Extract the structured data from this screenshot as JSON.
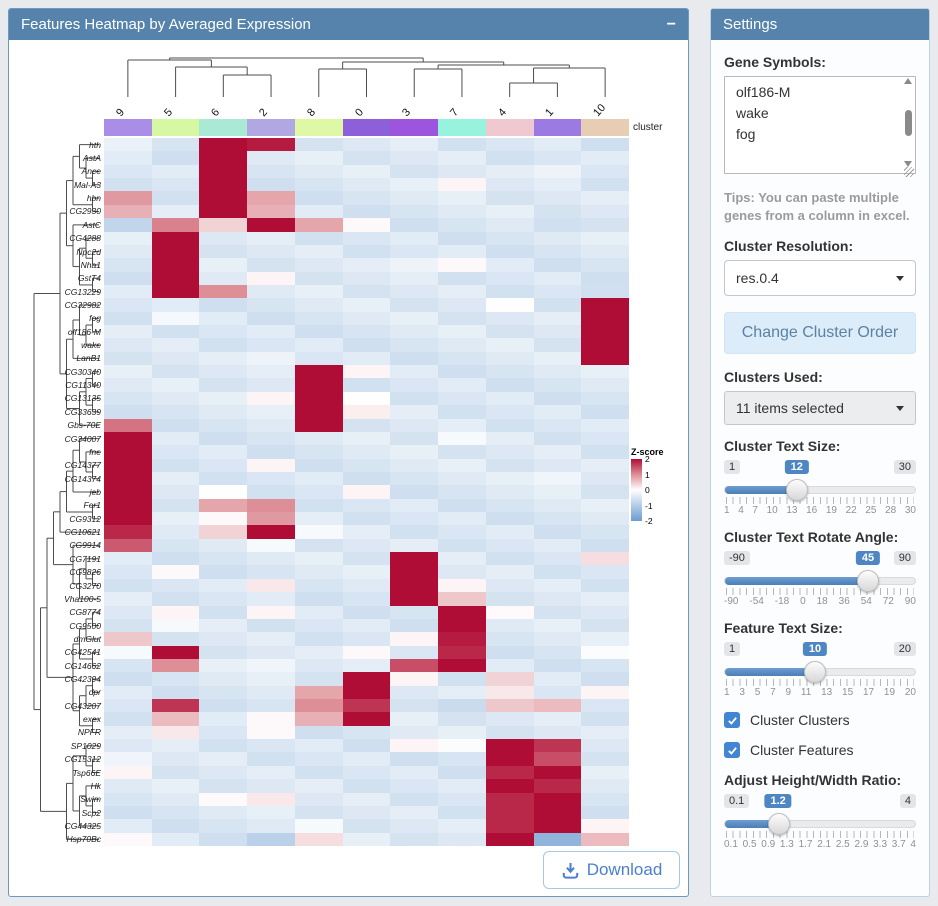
{
  "main_panel": {
    "title": "Features Heatmap by Averaged Expression",
    "collapse_label": "−",
    "download_label": "Download",
    "cluster_bar_label": "cluster",
    "legend_title": "Z-score",
    "legend_ticks": [
      "2",
      "1",
      "0",
      "-1",
      "-2"
    ]
  },
  "chart_data": {
    "type": "heatmap",
    "title": "Features Heatmap by Averaged Expression",
    "background_z": -0.45,
    "z_stops": [
      [
        -2,
        "#6d9bd2"
      ],
      [
        -1,
        "#b3cce6"
      ],
      [
        0,
        "#ffffff"
      ],
      [
        1,
        "#dd8e96"
      ],
      [
        2,
        "#b00d36"
      ]
    ],
    "columns": [
      {
        "name": "9",
        "color": "#a98de7",
        "dotted": false
      },
      {
        "name": "5",
        "color": "#d6f8a2",
        "dotted": false
      },
      {
        "name": "6",
        "color": "#a9e9d6",
        "dotted": true
      },
      {
        "name": "2",
        "color": "#b1a8e3",
        "dotted": true
      },
      {
        "name": "8",
        "color": "#def8a6",
        "dotted": true
      },
      {
        "name": "0",
        "color": "#8d5fd8",
        "dotted": true
      },
      {
        "name": "3",
        "color": "#9d55dd",
        "dotted": true
      },
      {
        "name": "7",
        "color": "#97f3de",
        "dotted": false
      },
      {
        "name": "4",
        "color": "#efc9cf",
        "dotted": false
      },
      {
        "name": "1",
        "color": "#9b7ae1",
        "dotted": true
      },
      {
        "name": "10",
        "color": "#e8cdb5",
        "dotted": true
      }
    ],
    "rows": [
      {
        "gene": "hth",
        "hot": {
          "6": 2,
          "2": 1.9
        }
      },
      {
        "gene": "AstA",
        "hot": {
          "6": 2
        }
      },
      {
        "gene": "Ance",
        "hot": {
          "6": 2
        }
      },
      {
        "gene": "Mal-A3",
        "hot": {
          "6": 2,
          "7": 0.1
        }
      },
      {
        "gene": "hbn",
        "hot": {
          "9": 0.9,
          "6": 2,
          "2": 0.8
        }
      },
      {
        "gene": "CG2930",
        "hot": {
          "9": 0.7,
          "6": 2,
          "2": 0.7
        }
      },
      {
        "gene": "AstC",
        "hot": {
          "9": -0.8,
          "5": 1.1,
          "6": 0.4,
          "2": 2,
          "8": 0.8,
          "0": 0.05,
          "1": -0.6
        }
      },
      {
        "gene": "CG4288",
        "hot": {
          "5": 2
        }
      },
      {
        "gene": "Npc2d",
        "hot": {
          "5": 2
        }
      },
      {
        "gene": "Nha1",
        "hot": {
          "5": 2,
          "7": 0.05
        }
      },
      {
        "gene": "GstT4",
        "hot": {
          "5": 2,
          "2": 0.1
        }
      },
      {
        "gene": "CG13229",
        "hot": {
          "5": 2,
          "6": 1.0,
          "10": -0.6
        }
      },
      {
        "gene": "CG32982",
        "hot": {
          "10": 2
        }
      },
      {
        "gene": "fog",
        "hot": {
          "10": 2
        }
      },
      {
        "gene": "olf186-M",
        "hot": {
          "10": 2
        }
      },
      {
        "gene": "wake",
        "hot": {
          "10": 2
        }
      },
      {
        "gene": "LanB1",
        "hot": {
          "10": 2
        }
      },
      {
        "gene": "CG30340",
        "hot": {
          "8": 2,
          "0": 0.1
        }
      },
      {
        "gene": "CG11340",
        "hot": {
          "8": 2
        }
      },
      {
        "gene": "CG13135",
        "hot": {
          "8": 2,
          "2": 0.1
        }
      },
      {
        "gene": "CG33639",
        "hot": {
          "8": 2,
          "0": 0.15
        }
      },
      {
        "gene": "Gbs-70E",
        "hot": {
          "9": 1.2,
          "8": 2
        }
      },
      {
        "gene": "CG34007",
        "hot": {
          "9": 2
        }
      },
      {
        "gene": "fne",
        "hot": {
          "9": 2
        }
      },
      {
        "gene": "CG14377",
        "hot": {
          "9": 2,
          "2": 0.1
        }
      },
      {
        "gene": "CG14374",
        "hot": {
          "9": 2
        }
      },
      {
        "gene": "jeb",
        "hot": {
          "9": 2,
          "0": 0.1
        }
      },
      {
        "gene": "Fer1",
        "hot": {
          "9": 2,
          "6": 0.8,
          "2": 1.0
        }
      },
      {
        "gene": "CG9312",
        "hot": {
          "9": 2,
          "6": 0.05,
          "2": 0.9
        }
      },
      {
        "gene": "CG10621",
        "hot": {
          "9": 1.8,
          "6": 0.4,
          "2": 2
        }
      },
      {
        "gene": "CG9914",
        "hot": {
          "9": 1.4,
          "2": -0.1
        }
      },
      {
        "gene": "CG7191",
        "hot": {
          "3": 2,
          "10": 0.3
        }
      },
      {
        "gene": "CG9826",
        "hot": {
          "3": 2,
          "5": 0.05
        }
      },
      {
        "gene": "CG3270",
        "hot": {
          "3": 2,
          "2": 0.2,
          "7": 0.1
        }
      },
      {
        "gene": "Vha100-5",
        "hot": {
          "3": 2,
          "7": 0.5
        }
      },
      {
        "gene": "CG8774",
        "hot": {
          "7": 2,
          "5": 0.1,
          "2": 0.1
        }
      },
      {
        "gene": "CG9500",
        "hot": {
          "7": 2
        }
      },
      {
        "gene": "dmGlut",
        "hot": {
          "9": 0.5,
          "7": 1.9,
          "3": 0.1
        }
      },
      {
        "gene": "CG42541",
        "hot": {
          "5": 2,
          "7": 1.8,
          "9": -0.1,
          "0": 0.05
        }
      },
      {
        "gene": "CG14662",
        "hot": {
          "5": 1.0,
          "3": 1.5,
          "7": 2
        }
      },
      {
        "gene": "CG42394",
        "hot": {
          "0": 2,
          "3": 0.1,
          "4": 0.4
        }
      },
      {
        "gene": "dpr",
        "hot": {
          "0": 2,
          "8": 0.8,
          "4": 0.2,
          "10": 0.1
        }
      },
      {
        "gene": "CG43207",
        "hot": {
          "5": 1.7,
          "8": 1.0,
          "0": 1.7,
          "7": -0.7,
          "4": 0.5,
          "1": 0.6
        }
      },
      {
        "gene": "exex",
        "hot": {
          "5": 0.6,
          "2": 0.05,
          "8": 0.7,
          "0": 2
        }
      },
      {
        "gene": "NPFR",
        "hot": {
          "2": 0.05,
          "5": 0.2
        }
      },
      {
        "gene": "SP1029",
        "hot": {
          "4": 2,
          "1": 1.7,
          "3": 0.1
        }
      },
      {
        "gene": "CG15312",
        "hot": {
          "4": 2,
          "1": 1.5
        }
      },
      {
        "gene": "Tsp66E",
        "hot": {
          "4": 1.8,
          "1": 2,
          "9": 0.1
        }
      },
      {
        "gene": "Hk",
        "hot": {
          "4": 2,
          "1": 1.8
        }
      },
      {
        "gene": "Swim",
        "hot": {
          "4": 1.8,
          "1": 2,
          "2": 0.2
        }
      },
      {
        "gene": "Scp2",
        "hot": {
          "4": 1.8,
          "1": 2
        }
      },
      {
        "gene": "CG44325",
        "hot": {
          "4": 1.8,
          "1": 2,
          "8": -0.1,
          "10": 0.1
        }
      },
      {
        "gene": "Hsp70Bc",
        "hot": {
          "9": 0.05,
          "4": 2,
          "1": -1.5,
          "10": 0.6,
          "2": -0.9,
          "8": 0.3
        }
      }
    ],
    "col_tree": {
      "h": 5,
      "c": [
        {
          "h": 7,
          "c": [
            {
              "leaf": 0
            },
            {
              "h": 14,
              "c": [
                {
                  "leaf": 1
                },
                {
                  "h": 22,
                  "c": [
                    {
                      "leaf": 2
                    },
                    {
                      "leaf": 3
                    }
                  ]
                }
              ]
            }
          ]
        },
        {
          "h": 9,
          "c": [
            {
              "h": 16,
              "c": [
                {
                  "leaf": 4
                },
                {
                  "leaf": 5
                }
              ]
            },
            {
              "h": 12,
              "c": [
                {
                  "h": 16,
                  "c": [
                    {
                      "leaf": 6
                    },
                    {
                      "leaf": 7
                    }
                  ]
                },
                {
                  "h": 15,
                  "c": [
                    {
                      "h": 30,
                      "c": [
                        {
                          "leaf": 8
                        },
                        {
                          "leaf": 9
                        }
                      ]
                    },
                    {
                      "leaf": 10
                    }
                  ]
                }
              ]
            }
          ]
        }
      ]
    },
    "row_tree": [
      [
        [
          [
            [
              [
                0,
                [
                  1,
                  [
                    2,
                    3
                  ]
                ]
              ],
              [
                4,
                5
              ]
            ],
            [
              6,
              [
                [
                  7,
                  [
                    8,
                    9
                  ]
                ],
                [
                  10,
                  11
                ]
              ]
            ]
          ],
          [
            [
              [
                12,
                [
                  [
                    13,
                    14
                  ],
                  15
                ]
              ],
              16
            ],
            [
              [
                [
                  17,
                  18
                ],
                [
                  19,
                  20
                ]
              ],
              21
            ]
          ]
        ],
        [
          [
            [
              [
                [
                  [
                    [
                      22,
                      [
                        23,
                        [
                          24,
                          25
                        ]
                      ]
                    ],
                    26
                  ],
                  [
                    27,
                    28
                  ]
                ],
                29
              ],
              [
                30,
                [
                  [
                    31,
                    [
                      32,
                      33
                    ]
                  ],
                  34
                ]
              ]
            ],
            [
              [
                [
                  [
                    35,
                    36
                  ],
                  37
                ],
                [
                  38,
                  39
                ]
              ],
              [
                [
                  [
                    40,
                    41
                  ],
                  42
                ],
                [
                  43,
                  44
                ]
              ]
            ]
          ],
          [
            [
              [
                45,
                [
                  46,
                  47
                ]
              ],
              [
                [
                  48,
                  [
                    49,
                    50
                  ]
                ],
                51
              ]
            ],
            52
          ]
        ]
      ]
    ]
  },
  "settings": {
    "title": "Settings",
    "gene_symbols": {
      "label": "Gene Symbols:",
      "text": "olf186-M\nwake\nfog"
    },
    "tips": "Tips: You can paste multiple genes from a column in excel.",
    "cluster_resolution": {
      "label": "Cluster Resolution:",
      "value": "res.0.4"
    },
    "change_cluster_order_label": "Change Cluster Order",
    "clusters_used": {
      "label": "Clusters Used:",
      "value": "11 items selected"
    },
    "sliders": [
      {
        "label": "Cluster Text Size:",
        "min": "1",
        "max": "30",
        "value": "12",
        "minv": 1,
        "maxv": 30,
        "val": 12,
        "ticks": [
          "1",
          "4",
          "7",
          "10",
          "13",
          "16",
          "19",
          "22",
          "25",
          "28",
          "30"
        ]
      },
      {
        "label": "Cluster Text Rotate Angle:",
        "min": "-90",
        "max": "90",
        "value": "45",
        "minv": -90,
        "maxv": 90,
        "val": 45,
        "ticks": [
          "-90",
          "-54",
          "-18",
          "0",
          "18",
          "36",
          "54",
          "72",
          "90"
        ]
      },
      {
        "label": "Feature Text Size:",
        "min": "1",
        "max": "20",
        "value": "10",
        "minv": 1,
        "maxv": 20,
        "val": 10,
        "ticks": [
          "1",
          "3",
          "5",
          "7",
          "9",
          "11",
          "13",
          "15",
          "17",
          "19",
          "20"
        ]
      },
      {
        "label": "Adjust Height/Width Ratio:",
        "min": "0.1",
        "max": "4",
        "value": "1.2",
        "minv": 0.1,
        "maxv": 4,
        "val": 1.2,
        "ticks": [
          "0.1",
          "0.5",
          "0.9",
          "1.3",
          "1.7",
          "2.1",
          "2.5",
          "2.9",
          "3.3",
          "3.7",
          "4"
        ]
      }
    ],
    "checkboxes": [
      {
        "label": "Cluster Clusters",
        "checked": true
      },
      {
        "label": "Cluster Features",
        "checked": true
      }
    ]
  }
}
